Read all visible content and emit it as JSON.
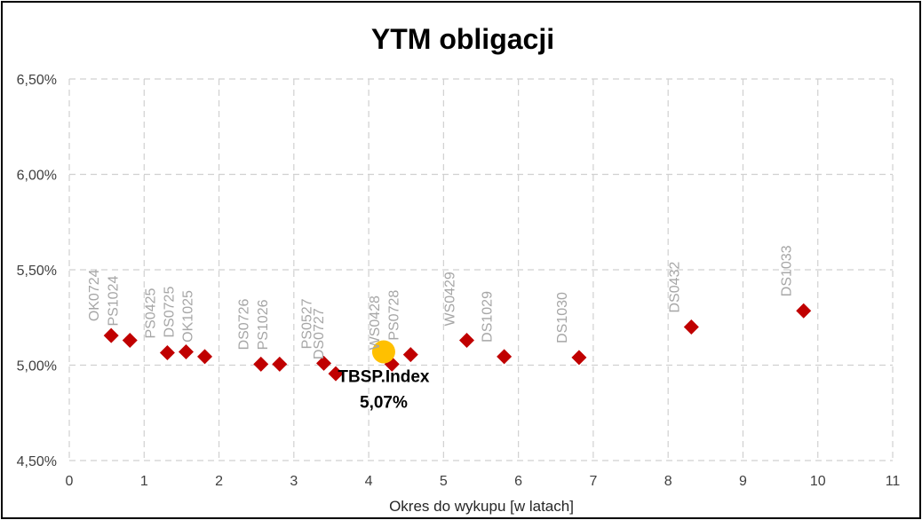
{
  "chart_data": {
    "type": "scatter",
    "title": "YTM obligacji",
    "xlabel": "Okres do wykupu [w latach]",
    "ylabel": "",
    "xlim": [
      0,
      11
    ],
    "ylim": [
      4.5,
      6.5
    ],
    "x_ticks": [
      "0",
      "1",
      "2",
      "3",
      "4",
      "5",
      "6",
      "7",
      "8",
      "9",
      "10",
      "11"
    ],
    "y_ticks": [
      "4,50%",
      "5,00%",
      "5,50%",
      "6,00%",
      "6,50%"
    ],
    "grid": true,
    "legend": "none",
    "colors": {
      "bonds": "#c00000",
      "index": "#ffc000",
      "labels": "#a6a6a6",
      "grid": "#d0d0d0"
    },
    "series": [
      {
        "marker": "diamond",
        "points": [
          {
            "label": "OK0724",
            "x": 0.56,
            "y": 5.155
          },
          {
            "label": "PS1024",
            "x": 0.81,
            "y": 5.13
          },
          {
            "label": "PS0425",
            "x": 1.31,
            "y": 5.065
          },
          {
            "label": "DS0725",
            "x": 1.56,
            "y": 5.07
          },
          {
            "label": "OK1025",
            "x": 1.81,
            "y": 5.045
          },
          {
            "label": "DS0726",
            "x": 2.56,
            "y": 5.005
          },
          {
            "label": "PS1026",
            "x": 2.81,
            "y": 5.005
          },
          {
            "label": "PS0527",
            "x": 3.4,
            "y": 5.01
          },
          {
            "label": "DS0727",
            "x": 3.56,
            "y": 4.955
          },
          {
            "label": "WS0428",
            "x": 4.31,
            "y": 5.005
          },
          {
            "label": "PS0728",
            "x": 4.56,
            "y": 5.055
          },
          {
            "label": "WS0429",
            "x": 5.31,
            "y": 5.13
          },
          {
            "label": "DS1029",
            "x": 5.81,
            "y": 5.045
          },
          {
            "label": "DS1030",
            "x": 6.81,
            "y": 5.04
          },
          {
            "label": "DS0432",
            "x": 8.31,
            "y": 5.2
          },
          {
            "label": "DS1033",
            "x": 9.81,
            "y": 5.285
          }
        ]
      },
      {
        "marker": "circle",
        "points": [
          {
            "label": "TBSP.Index",
            "value_label": "5,07%",
            "x": 4.2,
            "y": 5.07
          }
        ]
      }
    ]
  }
}
